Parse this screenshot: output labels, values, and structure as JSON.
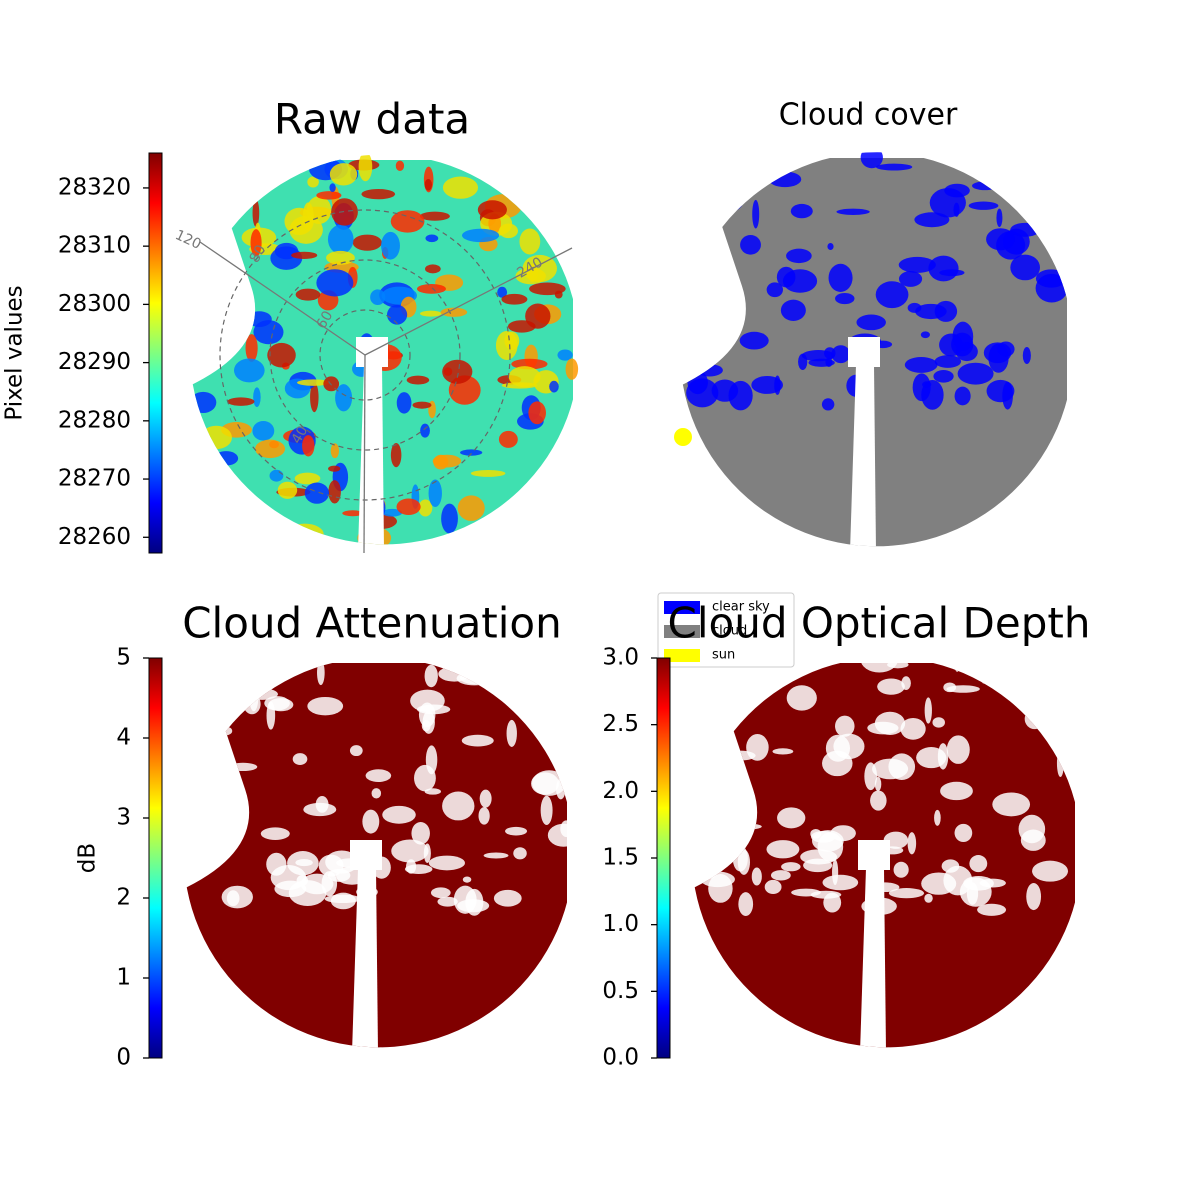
{
  "panels": [
    {
      "title": "Raw data",
      "colorbar": {
        "label": "Pixel values",
        "lim": [
          28257.3,
          28326
        ],
        "ticks": [
          28260,
          28270,
          28280,
          28290,
          28300,
          28310,
          28320
        ]
      },
      "overlay_labels": [
        "120",
        "80",
        "240",
        "60",
        "40"
      ]
    },
    {
      "title": "Cloud cover",
      "legend": [
        {
          "name": "clear sky",
          "color": "#0000ff"
        },
        {
          "name": "cloud",
          "color": "#808080"
        },
        {
          "name": "sun",
          "color": "#ffff00"
        }
      ]
    },
    {
      "title": "Cloud Attenuation",
      "colorbar": {
        "label": "dB",
        "lim": [
          0,
          5
        ],
        "ticks": [
          0,
          1,
          2,
          3,
          4,
          5
        ]
      }
    },
    {
      "title": "Cloud Optical Depth",
      "colorbar": {
        "lim": [
          0,
          3
        ],
        "ticks": [
          {
            "value": 0,
            "label": "0.0"
          },
          {
            "value": 0.5,
            "label": "0.5"
          },
          {
            "value": 1,
            "label": "1.0"
          },
          {
            "value": 1.5,
            "label": "1.5"
          },
          {
            "value": 2,
            "label": "2.0"
          },
          {
            "value": 2.5,
            "label": "2.5"
          },
          {
            "value": 3,
            "label": "3.0"
          }
        ]
      }
    }
  ]
}
